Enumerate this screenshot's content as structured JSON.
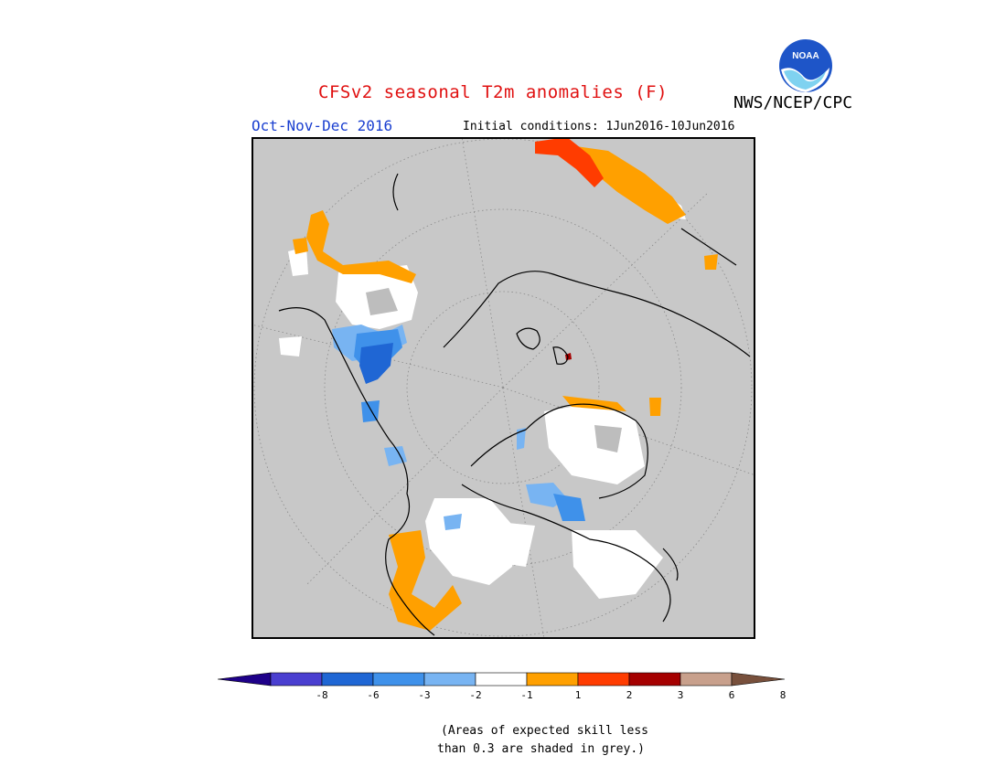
{
  "header": {
    "title": "CFSv2 seasonal T2m anomalies (F)",
    "agency": "NWS/NCEP/CPC",
    "season": "Oct-Nov-Dec 2016",
    "initial_conditions": "Initial conditions: 1Jun2016-10Jun2016"
  },
  "logo": {
    "text": "NOAA",
    "icon": "noaa-logo-icon"
  },
  "map": {
    "projection": "north-polar-stereographic",
    "background_color": "#c8c8c8",
    "no_skill_color": "#c8c8c8"
  },
  "legend": {
    "colors": [
      "#1e0089",
      "#4a3fd0",
      "#1f66d4",
      "#3f91ea",
      "#78b4f2",
      "#ffffff",
      "#ffa000",
      "#ff3c00",
      "#a50000",
      "#c8a08c",
      "#78503c"
    ],
    "tick_labels": [
      "-8",
      "-6",
      "-3",
      "-2",
      "-1",
      "1",
      "2",
      "3",
      "6",
      "8"
    ]
  },
  "footnote": {
    "line1": "(Areas of expected skill less",
    "line2": "than 0.3 are shaded in grey.)"
  }
}
